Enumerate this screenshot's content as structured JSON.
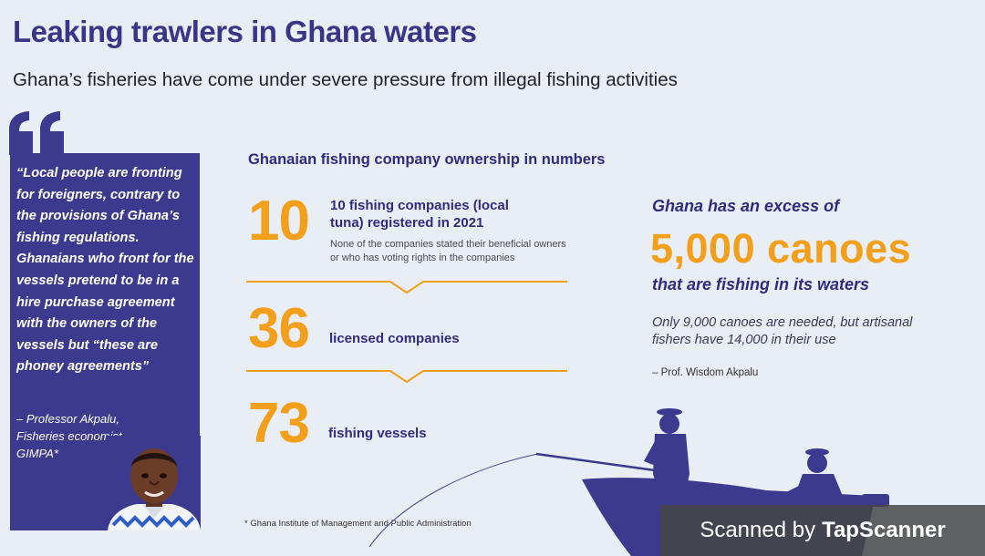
{
  "header": {
    "title": "Leaking trawlers in Ghana waters",
    "subtitle": "Ghana’s fisheries have come under severe pressure from illegal fishing activities"
  },
  "quote": {
    "text": "“Local people are fronting for foreigners, contrary to the provisions of Ghana’s fishing regulations. Ghanaians who front for the vessels pretend to be in a hire purchase agreement with the owners of the vessels but “these are phoney agreements”",
    "attribution": "– Professor Akpalu, Fisheries economist, GIMPA*"
  },
  "stats": {
    "title": "Ghanaian fishing company ownership in numbers",
    "items": [
      {
        "number": "10",
        "label": "10 fishing companies (local tuna) registered in 2021",
        "note": "None of the companies stated their beneficial owners or who has voting rights in the companies"
      },
      {
        "number": "36",
        "label": "licensed companies"
      },
      {
        "number": "73",
        "label": "fishing vessels"
      }
    ],
    "footnote": "* Ghana Institute of Management and Public Administration"
  },
  "canoes": {
    "lead": "Ghana has an excess of",
    "figure": "5,000 canoes",
    "tail": "that are fishing in its waters",
    "note": "Only 9,000 canoes are needed, but artisanal fishers have 14,000 in their use",
    "credit": "– Prof. Wisdom Akpalu"
  },
  "watermark": {
    "prefix": "Scanned by",
    "brand": "TapScanner"
  },
  "colors": {
    "navy": "#3b3a8e",
    "orange": "#f2a01b",
    "background": "#e9edf4"
  },
  "icons": {
    "quote_mark": "quote-icon",
    "portrait": "portrait-photo",
    "illustration": "fishermen-boat-illustration"
  }
}
